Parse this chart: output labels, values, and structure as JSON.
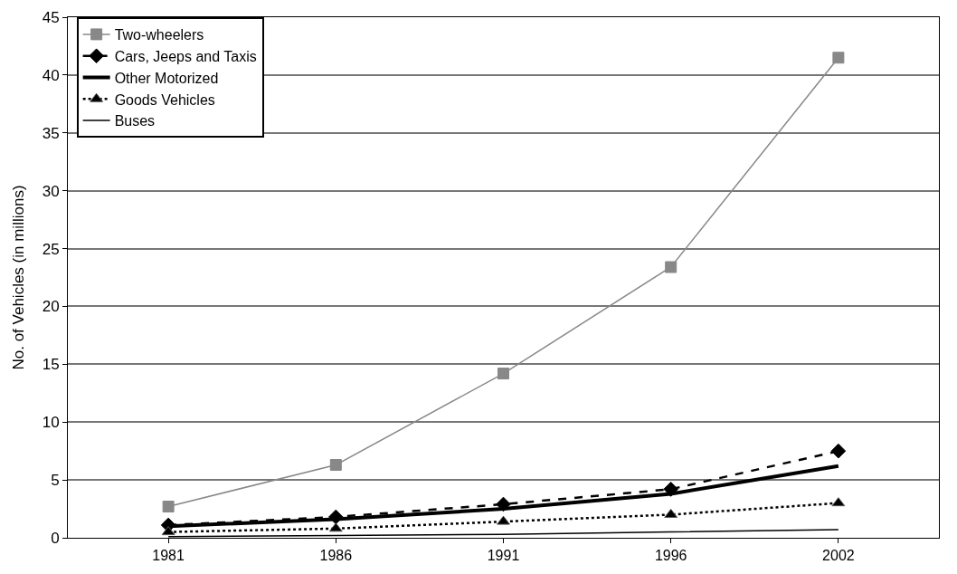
{
  "chart_data": {
    "type": "line",
    "ylabel": "No. of Vehicles (in millions)",
    "categories": [
      "1981",
      "1986",
      "1991",
      "1996",
      "2002"
    ],
    "series": [
      {
        "name": "Two-wheelers",
        "color": "#888888",
        "marker": "square",
        "line_style": "solid",
        "values": [
          2.7,
          6.3,
          14.2,
          23.4,
          41.5
        ]
      },
      {
        "name": "Cars, Jeeps and Taxis",
        "color": "#000000",
        "marker": "diamond",
        "line_style": "dashed",
        "values": [
          1.1,
          1.8,
          2.9,
          4.2,
          7.5
        ]
      },
      {
        "name": "Other Motorized",
        "color": "#000000",
        "marker": "none",
        "line_style": "solid",
        "values": [
          1.0,
          1.6,
          2.5,
          3.8,
          6.2
        ]
      },
      {
        "name": "Goods Vehicles",
        "color": "#000000",
        "marker": "triangle",
        "line_style": "dotted",
        "values": [
          0.5,
          0.8,
          1.4,
          2.0,
          3.0
        ]
      },
      {
        "name": "Buses",
        "color": "#000000",
        "marker": "none",
        "line_style": "solid",
        "values": [
          0.1,
          0.2,
          0.3,
          0.5,
          0.7
        ]
      }
    ],
    "ylim": [
      0,
      45
    ],
    "yticks": [
      0,
      5,
      10,
      15,
      20,
      25,
      30,
      35,
      40,
      45
    ],
    "grid": "y",
    "legend": "top left"
  }
}
